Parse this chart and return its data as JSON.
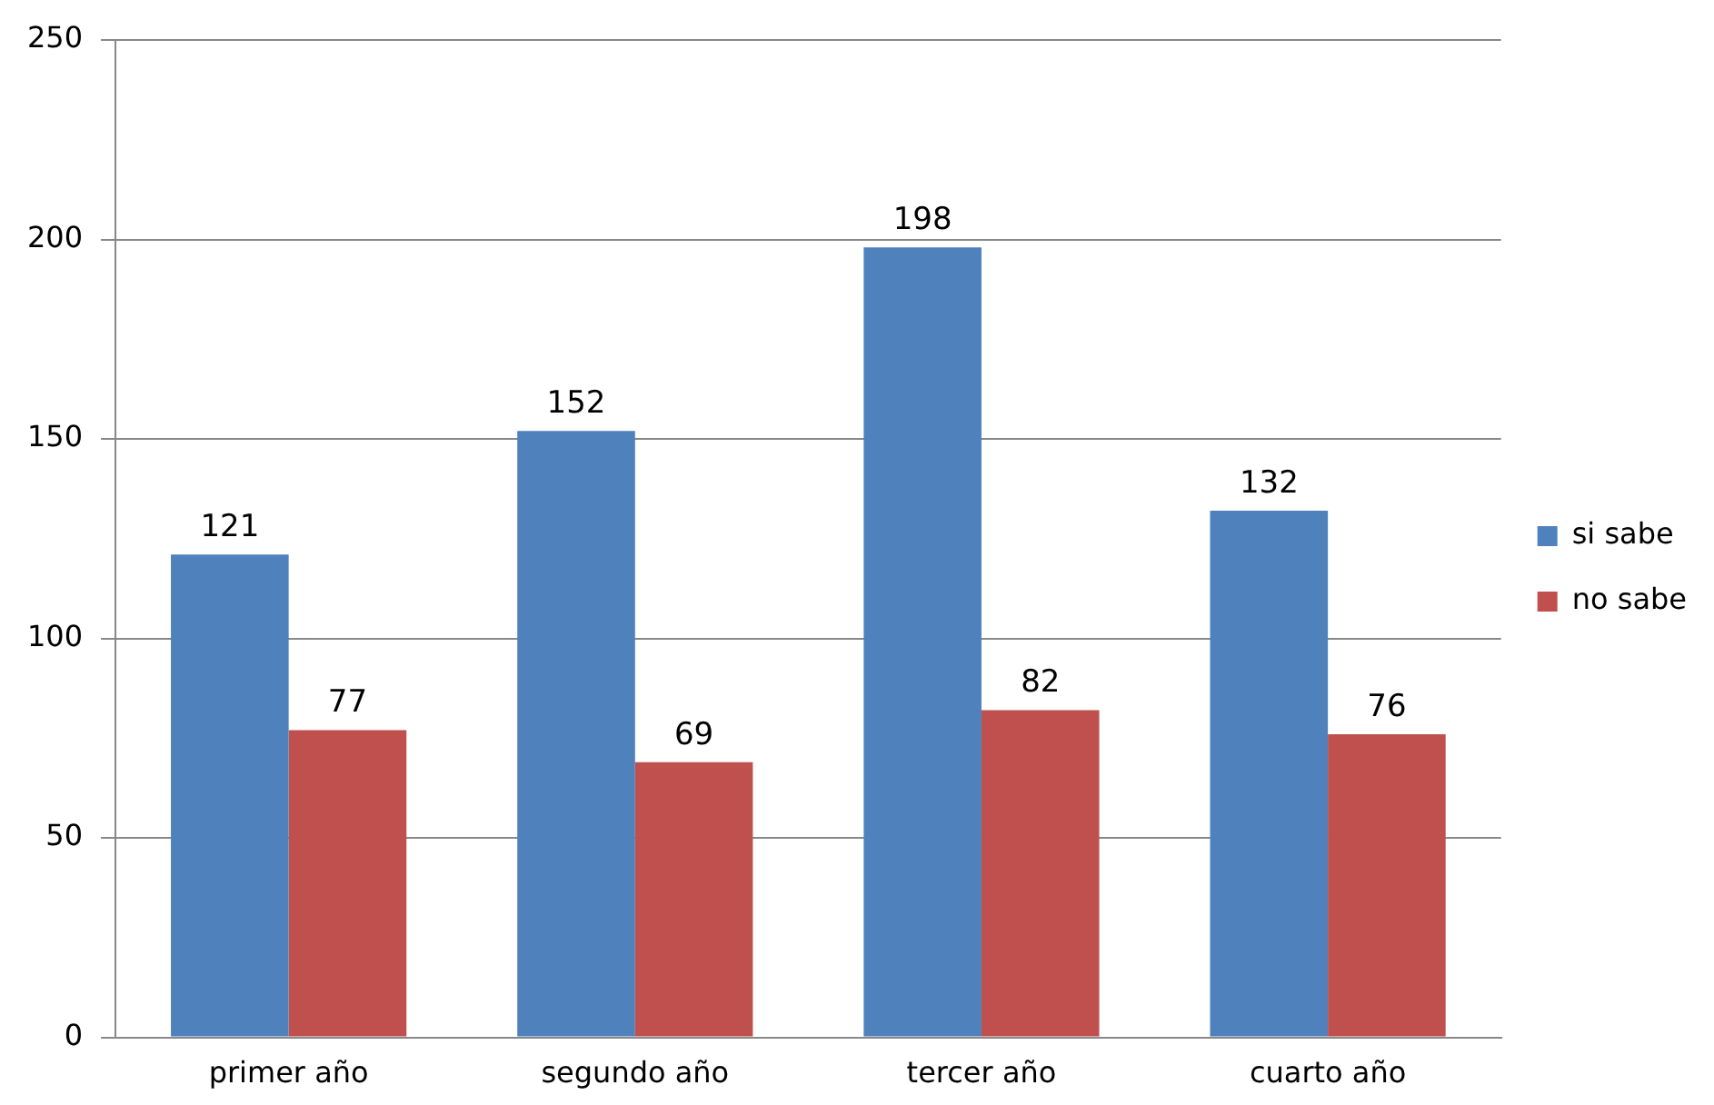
{
  "chart_data": {
    "type": "bar",
    "categories": [
      "primer año",
      "segundo año",
      "tercer año",
      "cuarto año"
    ],
    "series": [
      {
        "name": "si sabe",
        "color": "#4f81bd",
        "values": [
          121,
          152,
          198,
          132
        ]
      },
      {
        "name": "no sabe",
        "color": "#c0504d",
        "values": [
          77,
          69,
          82,
          76
        ]
      }
    ],
    "ylim": [
      0,
      250
    ],
    "yticks": [
      0,
      50,
      100,
      150,
      200,
      250
    ],
    "grid": "y",
    "legend": "right",
    "data_labels": true
  }
}
